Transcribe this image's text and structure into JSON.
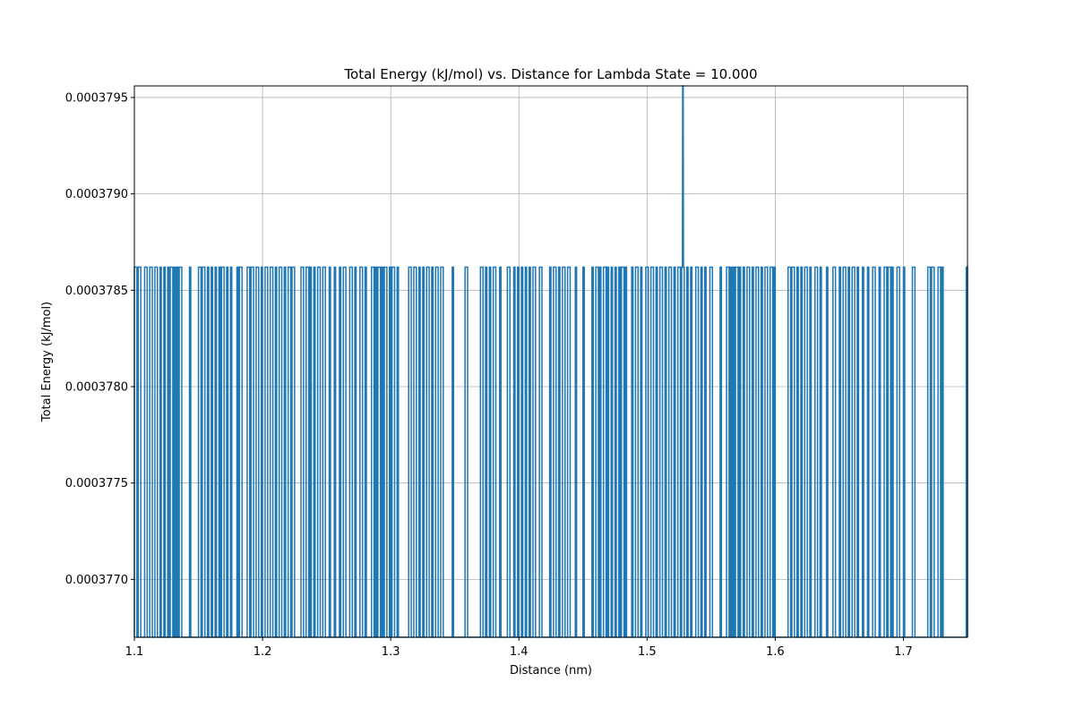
{
  "chart_data": {
    "type": "line",
    "title": "Total Energy (kJ/mol) vs. Distance for Lambda State = 10.000",
    "xlabel": "Distance (nm)",
    "ylabel": "Total Energy (kJ/mol)",
    "xlim": [
      1.1,
      1.75
    ],
    "ylim": [
      0.0003767,
      0.00037956
    ],
    "x_ticks": [
      1.1,
      1.2,
      1.3,
      1.4,
      1.5,
      1.6,
      1.7
    ],
    "x_tick_labels": [
      "1.1",
      "1.2",
      "1.3",
      "1.4",
      "1.5",
      "1.6",
      "1.7"
    ],
    "y_ticks": [
      0.000377,
      0.0003775,
      0.000378,
      0.0003785,
      0.000379,
      0.0003795
    ],
    "y_tick_labels": [
      "0.0003770",
      "0.0003775",
      "0.0003780",
      "0.0003785",
      "0.0003790",
      "0.0003795"
    ],
    "grid": true,
    "line_color": "#1f77b4",
    "series": [
      {
        "low_value": 0.0003767,
        "high_value": 0.00037862,
        "spike": {
          "x": 1.528,
          "value": 0.00037956
        },
        "high_intervals": [
          [
            1.1,
            1.102
          ],
          [
            1.103,
            1.105
          ],
          [
            1.108,
            1.11
          ],
          [
            1.112,
            1.114
          ],
          [
            1.116,
            1.118
          ],
          [
            1.12,
            1.121
          ],
          [
            1.123,
            1.124
          ],
          [
            1.126,
            1.127
          ],
          [
            1.128,
            1.13
          ],
          [
            1.131,
            1.132
          ],
          [
            1.133,
            1.134
          ],
          [
            1.135,
            1.137
          ],
          [
            1.143,
            1.144
          ],
          [
            1.15,
            1.152
          ],
          [
            1.153,
            1.155
          ],
          [
            1.157,
            1.158
          ],
          [
            1.16,
            1.161
          ],
          [
            1.163,
            1.164
          ],
          [
            1.166,
            1.167
          ],
          [
            1.168,
            1.17
          ],
          [
            1.172,
            1.173
          ],
          [
            1.175,
            1.176
          ],
          [
            1.18,
            1.181
          ],
          [
            1.182,
            1.184
          ],
          [
            1.188,
            1.19
          ],
          [
            1.191,
            1.193
          ],
          [
            1.195,
            1.197
          ],
          [
            1.199,
            1.2
          ],
          [
            1.202,
            1.204
          ],
          [
            1.206,
            1.208
          ],
          [
            1.21,
            1.211
          ],
          [
            1.213,
            1.215
          ],
          [
            1.217,
            1.218
          ],
          [
            1.22,
            1.222
          ],
          [
            1.223,
            1.225
          ],
          [
            1.23,
            1.232
          ],
          [
            1.234,
            1.236
          ],
          [
            1.237,
            1.238
          ],
          [
            1.24,
            1.241
          ],
          [
            1.243,
            1.245
          ],
          [
            1.247,
            1.249
          ],
          [
            1.252,
            1.253
          ],
          [
            1.256,
            1.257
          ],
          [
            1.26,
            1.261
          ],
          [
            1.263,
            1.265
          ],
          [
            1.268,
            1.27
          ],
          [
            1.272,
            1.273
          ],
          [
            1.276,
            1.278
          ],
          [
            1.28,
            1.281
          ],
          [
            1.285,
            1.287
          ],
          [
            1.288,
            1.289
          ],
          [
            1.29,
            1.292
          ],
          [
            1.293,
            1.294
          ],
          [
            1.295,
            1.297
          ],
          [
            1.299,
            1.3
          ],
          [
            1.301,
            1.303
          ],
          [
            1.305,
            1.306
          ],
          [
            1.314,
            1.316
          ],
          [
            1.318,
            1.32
          ],
          [
            1.322,
            1.323
          ],
          [
            1.325,
            1.326
          ],
          [
            1.328,
            1.33
          ],
          [
            1.332,
            1.333
          ],
          [
            1.335,
            1.337
          ],
          [
            1.339,
            1.341
          ],
          [
            1.348,
            1.349
          ],
          [
            1.358,
            1.36
          ],
          [
            1.37,
            1.372
          ],
          [
            1.374,
            1.375
          ],
          [
            1.377,
            1.378
          ],
          [
            1.38,
            1.382
          ],
          [
            1.385,
            1.386
          ],
          [
            1.391,
            1.393
          ],
          [
            1.396,
            1.397
          ],
          [
            1.399,
            1.4
          ],
          [
            1.402,
            1.403
          ],
          [
            1.405,
            1.406
          ],
          [
            1.408,
            1.409
          ],
          [
            1.411,
            1.413
          ],
          [
            1.416,
            1.418
          ],
          [
            1.424,
            1.425
          ],
          [
            1.427,
            1.429
          ],
          [
            1.431,
            1.432
          ],
          [
            1.434,
            1.436
          ],
          [
            1.438,
            1.44
          ],
          [
            1.444,
            1.445
          ],
          [
            1.45,
            1.451
          ],
          [
            1.457,
            1.458
          ],
          [
            1.46,
            1.462
          ],
          [
            1.463,
            1.464
          ],
          [
            1.466,
            1.468
          ],
          [
            1.469,
            1.47
          ],
          [
            1.472,
            1.473
          ],
          [
            1.475,
            1.476
          ],
          [
            1.478,
            1.479
          ],
          [
            1.48,
            1.482
          ],
          [
            1.483,
            1.484
          ],
          [
            1.488,
            1.489
          ],
          [
            1.491,
            1.493
          ],
          [
            1.495,
            1.496
          ],
          [
            1.499,
            1.501
          ],
          [
            1.503,
            1.505
          ],
          [
            1.507,
            1.508
          ],
          [
            1.51,
            1.512
          ],
          [
            1.514,
            1.515
          ],
          [
            1.517,
            1.519
          ],
          [
            1.521,
            1.522
          ],
          [
            1.524,
            1.526
          ],
          [
            1.527,
            1.529
          ],
          [
            1.531,
            1.532
          ],
          [
            1.534,
            1.535
          ],
          [
            1.538,
            1.54
          ],
          [
            1.542,
            1.543
          ],
          [
            1.545,
            1.546
          ],
          [
            1.549,
            1.551
          ],
          [
            1.557,
            1.558
          ],
          [
            1.562,
            1.564
          ],
          [
            1.565,
            1.566
          ],
          [
            1.567,
            1.568
          ],
          [
            1.569,
            1.571
          ],
          [
            1.572,
            1.573
          ],
          [
            1.575,
            1.576
          ],
          [
            1.578,
            1.58
          ],
          [
            1.582,
            1.583
          ],
          [
            1.585,
            1.587
          ],
          [
            1.589,
            1.59
          ],
          [
            1.592,
            1.594
          ],
          [
            1.596,
            1.598
          ],
          [
            1.599,
            1.6
          ],
          [
            1.61,
            1.612
          ],
          [
            1.613,
            1.615
          ],
          [
            1.617,
            1.618
          ],
          [
            1.62,
            1.621
          ],
          [
            1.623,
            1.625
          ],
          [
            1.627,
            1.628
          ],
          [
            1.631,
            1.633
          ],
          [
            1.635,
            1.636
          ],
          [
            1.64,
            1.641
          ],
          [
            1.645,
            1.647
          ],
          [
            1.65,
            1.651
          ],
          [
            1.653,
            1.655
          ],
          [
            1.657,
            1.658
          ],
          [
            1.66,
            1.662
          ],
          [
            1.664,
            1.665
          ],
          [
            1.668,
            1.669
          ],
          [
            1.672,
            1.673
          ],
          [
            1.676,
            1.678
          ],
          [
            1.681,
            1.682
          ],
          [
            1.685,
            1.687
          ],
          [
            1.688,
            1.69
          ],
          [
            1.691,
            1.692
          ],
          [
            1.695,
            1.697
          ],
          [
            1.7,
            1.701
          ],
          [
            1.707,
            1.709
          ],
          [
            1.719,
            1.721
          ],
          [
            1.722,
            1.724
          ],
          [
            1.727,
            1.729
          ],
          [
            1.73,
            1.731
          ],
          [
            1.749,
            1.75
          ]
        ]
      }
    ]
  }
}
